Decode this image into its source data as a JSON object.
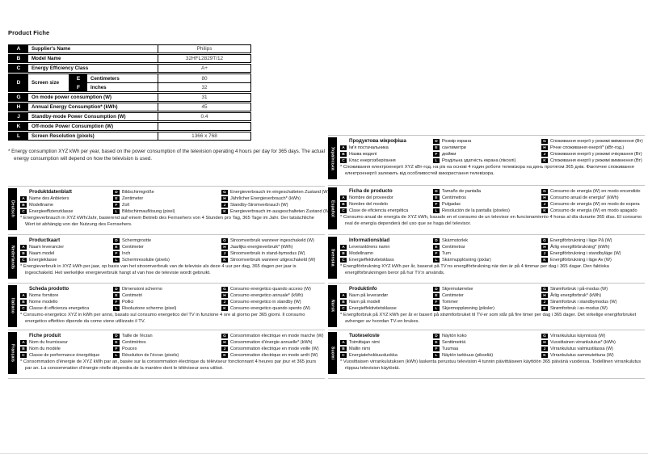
{
  "page": {
    "title": "Product Fiche"
  },
  "colors": {
    "badge_bg": "#000000",
    "page_bg": "#ffffff",
    "table_border": "#000000",
    "separator": "#c4c4c4"
  },
  "product_table": {
    "rows": [
      {
        "key": "A",
        "label": "Supplier's Name",
        "value": "Philips"
      },
      {
        "key": "B",
        "label": "Model Name",
        "value": "32HFL2829T/12"
      },
      {
        "key": "C",
        "label": "Energy Efficiency Class",
        "value": "A+"
      },
      {
        "key": "D",
        "label": "Screen size",
        "sub": [
          {
            "key": "E",
            "label": "Centimeters",
            "value": "80"
          },
          {
            "key": "F",
            "label": "Inches",
            "value": "32"
          }
        ]
      },
      {
        "key": "G",
        "label": "On mode power consumption (W)",
        "value": "31"
      },
      {
        "key": "H",
        "label": "Annual Energy Consumption* (kWh)",
        "value": "45"
      },
      {
        "key": "J",
        "label": "Standby-mode Power Consumption (W)",
        "value": "0.4"
      },
      {
        "key": "K",
        "label": "Off-mode Power Consumption (W)",
        "value": ""
      },
      {
        "key": "L",
        "label": "Screen Resolution (pixels)",
        "value": "1366 x 768"
      }
    ]
  },
  "footnote": "* Energy consumption XYZ kWh per year, based on the power consumption of the television operating 4 hours per day for 365 days. The actual energy consumption will depend on how the television is used.",
  "sections_left": [
    {
      "language": "Deutsch",
      "title": "Produktdatenblatt",
      "col1": [
        {
          "key": "A",
          "label": "Name des Anbieters"
        },
        {
          "key": "B",
          "label": "Modellname"
        },
        {
          "key": "C",
          "label": "Energieeffizienzklasse"
        }
      ],
      "col2": [
        {
          "key": "D",
          "label": "Bildschirmgröße"
        },
        {
          "key": "E",
          "label": "Zentimeter"
        },
        {
          "key": "F",
          "label": "Zoll"
        },
        {
          "key": "L",
          "label": "Bildschirmauflösung (pixel)"
        }
      ],
      "col3": [
        {
          "key": "G",
          "label": "Energieverbrauch im eingeschalteten Zustand (W)"
        },
        {
          "key": "H",
          "label": "Jährlicher Energieverbrauch* (kWh)"
        },
        {
          "key": "J",
          "label": "Standby-Stromverbrauch (W)"
        },
        {
          "key": "K",
          "label": "Energieverbrauch im ausgeschalteten Zustand (W)"
        }
      ],
      "footnote": "* Energieverbrauch in XYZ kWh/Jahr, basierend auf einem Betrieb des Fernsehers von 4 Stunden pro Tag, 365 Tage im Jahr. Der tatsächliche Wert ist abhängig von der Nutzung des Fernsehers."
    },
    {
      "language": "Nederlands",
      "title": "Productkaart",
      "col1": [
        {
          "key": "A",
          "label": "Naam leverancier"
        },
        {
          "key": "B",
          "label": "Naam model"
        },
        {
          "key": "C",
          "label": "Energieklasse"
        }
      ],
      "col2": [
        {
          "key": "D",
          "label": "Schermgrootte"
        },
        {
          "key": "E",
          "label": "Centimeter"
        },
        {
          "key": "F",
          "label": "Inch"
        },
        {
          "key": "L",
          "label": "Schermresolutie (pixels)"
        }
      ],
      "col3": [
        {
          "key": "G",
          "label": "Stroomverbruik wanneer ingeschakeld (W)"
        },
        {
          "key": "H",
          "label": "Jaarlijks energieverbruik* (kWh)"
        },
        {
          "key": "J",
          "label": "Stroomverbruik in stand-bymodus (W)"
        },
        {
          "key": "K",
          "label": "Stroomverbruik wanneer uitgeschakeld (W)"
        }
      ],
      "footnote": "* Energieverbruik in XYZ kWh per jaar, op basis van het stroomverbruik van de televisie als deze 4 uur per dag, 365 dagen per jaar is ingeschakeld. Het werkelijke energieverbruik hangt af van hoe de televisie wordt gebruikt."
    },
    {
      "language": "Italiano",
      "title": "Scheda prodotto",
      "col1": [
        {
          "key": "A",
          "label": "Nome fornitore"
        },
        {
          "key": "B",
          "label": "Nome modello"
        },
        {
          "key": "C",
          "label": "Classe di efficienza energetica"
        }
      ],
      "col2": [
        {
          "key": "D",
          "label": "Dimensioni schermo"
        },
        {
          "key": "E",
          "label": "Centimetri"
        },
        {
          "key": "F",
          "label": "Pollici"
        },
        {
          "key": "L",
          "label": "Risoluzione schermo (pixel)"
        }
      ],
      "col3": [
        {
          "key": "G",
          "label": "Consumo energetico quando acceso (W)"
        },
        {
          "key": "H",
          "label": "Consumo energetico annuale* (kWh)"
        },
        {
          "key": "J",
          "label": "Consumo energetico in standby (W)"
        },
        {
          "key": "K",
          "label": "Consumo energetico quando spento (W)"
        }
      ],
      "footnote": "* Consumo energetico XYZ in kWh per anno, basato sul consumo energetico del TV in funzione 4 ore al giorno per 365 giorni. Il consumo energetico effettivo dipende da come viene utilizzato il TV."
    },
    {
      "language": "Français",
      "title": "Fiche produit",
      "col1": [
        {
          "key": "A",
          "label": "Nom du fournisseur"
        },
        {
          "key": "B",
          "label": "Nom du modèle"
        },
        {
          "key": "C",
          "label": "Classe de performance énergétique"
        }
      ],
      "col2": [
        {
          "key": "D",
          "label": "Taille de l'écran"
        },
        {
          "key": "E",
          "label": "Centimètres"
        },
        {
          "key": "F",
          "label": "Pouces"
        },
        {
          "key": "L",
          "label": "Résolution de l'écran (pixels)"
        }
      ],
      "col3": [
        {
          "key": "G",
          "label": "Consommation électrique en mode marche (W)"
        },
        {
          "key": "H",
          "label": "Consommation d'énergie annuelle* (kWh)"
        },
        {
          "key": "J",
          "label": "Consommation électrique en mode veille (W)"
        },
        {
          "key": "K",
          "label": "Consommation électrique en mode arrêt (W)"
        }
      ],
      "footnote": "* Consommation d'énergie de XYZ kWh par an, basée sur la consommation électrique du téléviseur fonctionnant 4 heures par jour et 365 jours par an. La consommation d'énergie réelle dépendra de la manière dont le téléviseur sera utilisé."
    }
  ],
  "sections_right": [
    {
      "language": "Українська",
      "title": "Продуктова мікрофіша",
      "col1": [
        {
          "key": "A",
          "label": "Ім'я постачальника"
        },
        {
          "key": "B",
          "label": "Назва моделі"
        },
        {
          "key": "C",
          "label": "Клас енергозберігання"
        }
      ],
      "col2": [
        {
          "key": "D",
          "label": "Розмір екрана"
        },
        {
          "key": "E",
          "label": "сантиметри"
        },
        {
          "key": "F",
          "label": "дюйми"
        },
        {
          "key": "L",
          "label": "Роздільна здатність екрана (пікселі)"
        }
      ],
      "col3": [
        {
          "key": "G",
          "label": "Споживання енергії у режимі ввімкнення (Вт)"
        },
        {
          "key": "H",
          "label": "Річне споживання енергії* (кВт-год.)"
        },
        {
          "key": "J",
          "label": "Споживання енергії у режимі очікування (Вт)"
        },
        {
          "key": "K",
          "label": "Споживання енергії у режимі вимкнення (Вт)"
        }
      ],
      "footnote": "* Споживання електроенергії XYZ кВт-год. на рік на основі 4 годин роботи телевізора на день протягом 365 днів. Фактичне споживання електроенергії залежить від особливостей використання телевізора."
    },
    {
      "language": "Español",
      "title": "Ficha de producto",
      "col1": [
        {
          "key": "A",
          "label": "Nombre del proveedor"
        },
        {
          "key": "B",
          "label": "Nombre del modelo"
        },
        {
          "key": "C",
          "label": "Clase de eficiencia energética"
        }
      ],
      "col2": [
        {
          "key": "D",
          "label": "Tamaño de pantalla"
        },
        {
          "key": "E",
          "label": "Centímetros"
        },
        {
          "key": "F",
          "label": "Pulgadas"
        },
        {
          "key": "L",
          "label": "Resolución de la pantalla (píxeles)"
        }
      ],
      "col3": [
        {
          "key": "G",
          "label": "Consumo de energía (W) en modo encendido"
        },
        {
          "key": "H",
          "label": "Consumo anual de energía* (kWh)"
        },
        {
          "key": "J",
          "label": "Consumo de energía (W) en modo de espera"
        },
        {
          "key": "K",
          "label": "Consumo de energía (W) en modo apagado"
        }
      ],
      "footnote": "* Consumo anual de energía de XYZ kWh, basado en el consumo de un televisor en funcionamiento 4 horas al día durante 365 días. El consumo real de energía dependerá del uso que se haga del televisor."
    },
    {
      "language": "Svenska",
      "title": "Informationsblad",
      "col1": [
        {
          "key": "A",
          "label": "Leverantörens namn"
        },
        {
          "key": "B",
          "label": "Modellnamn"
        },
        {
          "key": "C",
          "label": "Energieffektivitetsklass"
        }
      ],
      "col2": [
        {
          "key": "D",
          "label": "Skärmstorlek"
        },
        {
          "key": "E",
          "label": "Centimetrar"
        },
        {
          "key": "F",
          "label": "Tum"
        },
        {
          "key": "L",
          "label": "Skärmupplösning (pixlar)"
        }
      ],
      "col3": [
        {
          "key": "G",
          "label": "Energiförbrukning i läge På (W)"
        },
        {
          "key": "H",
          "label": "Årlig energiförbrukning* (kWh)"
        },
        {
          "key": "J",
          "label": "Energiförbrukning i standbyläge (W)"
        },
        {
          "key": "K",
          "label": "Energiförbrukning i läge Av (W)"
        }
      ],
      "footnote": "* Energiförbrukning XYZ kWh per år, baserat på TV:ns energiförbrukning när den är på 4 timmar per dag i 365 dagar. Den faktiska energiförbrukningen beror på hur TV:n används."
    },
    {
      "language": "Norsk",
      "title": "Produktinfo",
      "col1": [
        {
          "key": "A",
          "label": "Navn på leverandør"
        },
        {
          "key": "B",
          "label": "Navn på modell"
        },
        {
          "key": "C",
          "label": "Energieffektivitetsklasse"
        }
      ],
      "col2": [
        {
          "key": "D",
          "label": "Skjermstørrelse"
        },
        {
          "key": "E",
          "label": "Centimeter"
        },
        {
          "key": "F",
          "label": "Tommer"
        },
        {
          "key": "L",
          "label": "Skjermoppløsning (piksler)"
        }
      ],
      "col3": [
        {
          "key": "G",
          "label": "Strømforbruk i på-modus (W)"
        },
        {
          "key": "H",
          "label": "Årlig energiforbruk* (kWh)"
        },
        {
          "key": "J",
          "label": "Strømforbruk i standbymodus (W)"
        },
        {
          "key": "K",
          "label": "Strømforbruk i av-modus (W)"
        }
      ],
      "footnote": "* Energiforbruk på XYZ kWh per år er basert på strømforbruket til TV-er som står på fire timer per dag i 365 dager. Det virkelige energiforbruket avhenger av hvordan TV-en brukes."
    },
    {
      "language": "Suomi",
      "title": "Tuoteseloste",
      "col1": [
        {
          "key": "A",
          "label": "Toimittajan nimi"
        },
        {
          "key": "B",
          "label": "Mallin nimi"
        },
        {
          "key": "C",
          "label": "Energiatehokkuusluokka"
        }
      ],
      "col2": [
        {
          "key": "D",
          "label": "Näytön koko"
        },
        {
          "key": "E",
          "label": "Senttimetriä"
        },
        {
          "key": "F",
          "label": "Tuumaa"
        },
        {
          "key": "L",
          "label": "Näytön tarkkuus (pikseliä)"
        }
      ],
      "col3": [
        {
          "key": "G",
          "label": "Virrankulutus käynnissä (W)"
        },
        {
          "key": "H",
          "label": "Vuosittainen virrankulutus* (kWh)"
        },
        {
          "key": "J",
          "label": "Virrankulutus valmiustilassa (W)"
        },
        {
          "key": "K",
          "label": "Virrankulutus sammutettuna (W)"
        }
      ],
      "footnote": "* Vuosittaisen virrankulutuksen (kWh) laskenta perustuu television 4 tunnin päivittäiseen käyttöön 365 päivänä vuodessa. Todellinen virrankulutus riippuu television käytöstä."
    }
  ]
}
